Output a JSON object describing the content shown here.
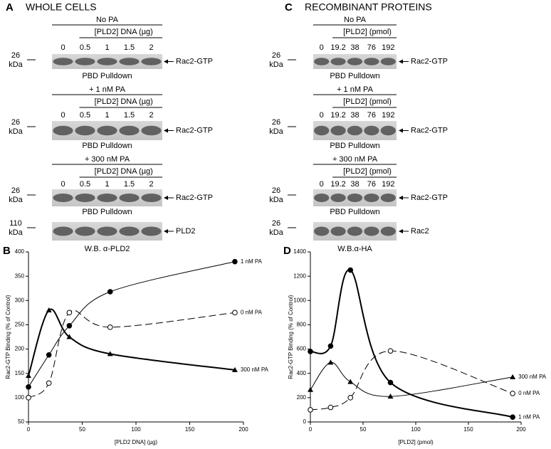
{
  "panels": [
    {
      "label": "A",
      "title": "WHOLE CELLS",
      "blots": [
        {
          "header": "No PA",
          "subheader": "[PLD2] DNA (µg)",
          "lanes": [
            "0",
            "0.5",
            "1",
            "1.5",
            "2"
          ],
          "marker": [
            "26",
            "kDa"
          ],
          "target": "Rac2-GTP",
          "caption": "PBD Pulldown"
        },
        {
          "header": "+ 1 nM PA",
          "subheader": "[PLD2] DNA (µg)",
          "lanes": [
            "0",
            "0.5",
            "1",
            "1.5",
            "2"
          ],
          "marker": [
            "26",
            "kDa"
          ],
          "target": "Rac2-GTP",
          "caption": "PBD Pulldown"
        },
        {
          "header": "+ 300 nM PA",
          "subheader": "[PLD2] DNA (µg)",
          "lanes": [
            "0",
            "0.5",
            "1",
            "1.5",
            "2"
          ],
          "marker": [
            "26",
            "kDa"
          ],
          "target": "Rac2-GTP",
          "caption": "PBD Pulldown"
        },
        {
          "marker": [
            "110",
            "kDa"
          ],
          "target": "PLD2",
          "caption": "W.B. α-PLD2"
        }
      ]
    },
    {
      "label": "C",
      "title": "RECOMBINANT PROTEINS",
      "blots": [
        {
          "header": "No PA",
          "subheader": "[PLD2] (pmol)",
          "lanes": [
            "0",
            "19.2",
            "38",
            "76",
            "192"
          ],
          "marker": [
            "26",
            "kDa"
          ],
          "target": "Rac2-GTP",
          "caption": "PBD Pulldown"
        },
        {
          "header": "+ 1 nM PA",
          "subheader": "[PLD2] (pmol)",
          "lanes": [
            "0",
            "19.2",
            "38",
            "76",
            "192"
          ],
          "marker": [
            "26",
            "kDa"
          ],
          "target": "Rac2-GTP",
          "caption": "PBD Pulldown"
        },
        {
          "header": "+ 300 nM PA",
          "subheader": "[PLD2] (pmol)",
          "lanes": [
            "0",
            "19.2",
            "38",
            "76",
            "192"
          ],
          "marker": [
            "26",
            "kDa"
          ],
          "target": "Rac2-GTP",
          "caption": "PBD Pulldown"
        },
        {
          "marker": [
            "26",
            "kDa"
          ],
          "target": "Rac2",
          "caption": "W.B.α-HA"
        }
      ]
    }
  ],
  "chart_data": [
    {
      "type": "line",
      "panel_label": "B",
      "y_label": "Rac2-GTP Binding (% of Control)",
      "x_label": "[PLD2 DNA] (µg)",
      "x": [
        0,
        19,
        38,
        76,
        192
      ],
      "xlim": [
        0,
        200
      ],
      "xticks": [
        0,
        50,
        100,
        150,
        200
      ],
      "ylim": [
        50,
        400
      ],
      "yticks": [
        50,
        100,
        150,
        200,
        250,
        300,
        350,
        400
      ],
      "series": [
        {
          "name": "1 nM PA",
          "color": "#000000",
          "marker": "filled-circle",
          "dashed": false,
          "line_width": 1,
          "values": [
            122,
            188,
            248,
            318,
            380
          ]
        },
        {
          "name": "0 nM PA",
          "color": "#000000",
          "marker": "open-circle",
          "dashed": true,
          "line_width": 1,
          "values": [
            100,
            130,
            275,
            245,
            275
          ]
        },
        {
          "name": "300 nM PA",
          "color": "#000000",
          "marker": "triangle",
          "dashed": false,
          "line_width": 2,
          "values": [
            145,
            280,
            225,
            190,
            157
          ]
        }
      ]
    },
    {
      "type": "line",
      "panel_label": "D",
      "y_label": "Rac2-GTP Binding (% of Control)",
      "x_label": "[PLD2] (pmol)",
      "x": [
        0,
        19.2,
        38,
        76,
        192
      ],
      "xlim": [
        0,
        200
      ],
      "xticks": [
        0,
        50,
        100,
        150,
        200
      ],
      "ylim": [
        0,
        1400
      ],
      "yticks": [
        0,
        200,
        400,
        600,
        800,
        1000,
        1200,
        1400
      ],
      "series": [
        {
          "name": "300 nM PA",
          "color": "#000000",
          "marker": "triangle",
          "dashed": false,
          "line_width": 1,
          "values": [
            265,
            490,
            330,
            210,
            370
          ]
        },
        {
          "name": "0 nM PA",
          "color": "#000000",
          "marker": "open-circle",
          "dashed": true,
          "line_width": 1,
          "values": [
            100,
            120,
            200,
            585,
            235
          ]
        },
        {
          "name": "1 nM PA",
          "color": "#000000",
          "marker": "filled-circle",
          "dashed": false,
          "line_width": 2,
          "values": [
            580,
            625,
            1250,
            325,
            40
          ]
        }
      ]
    }
  ]
}
